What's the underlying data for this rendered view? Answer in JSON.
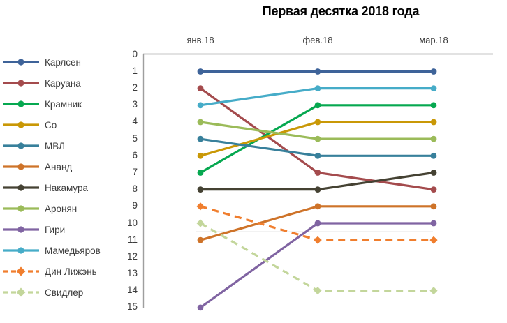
{
  "title": "Первая десятка 2018 года",
  "chart_data": {
    "type": "line",
    "title": "Первая десятка 2018 года",
    "categories": [
      "янв.18",
      "фев.18",
      "мар.18"
    ],
    "x_axis_position": "top",
    "legend_position": "left",
    "grid": false,
    "y_axis": {
      "ticks": [
        "0",
        "1",
        "2",
        "3",
        "4",
        "5",
        "6",
        "7",
        "8",
        "9",
        "10",
        "11",
        "12",
        "13",
        "14",
        "15"
      ],
      "min": 0,
      "max": 15,
      "increases_downward": true
    },
    "annotation_line_y": 10.5,
    "axis_colors": {
      "top_border": "#8c8c8c",
      "left_axis": "#9e9e9e",
      "annotation_line": "#dcdcdc"
    },
    "series": [
      {
        "name": "Карлсен",
        "color": "#3E6399",
        "line_style": "solid",
        "marker": "circle",
        "values": [
          1,
          1,
          1
        ]
      },
      {
        "name": "Каруана",
        "color": "#A44B4D",
        "line_style": "solid",
        "marker": "circle",
        "values": [
          2,
          7,
          8
        ]
      },
      {
        "name": "Крамник",
        "color": "#06A850",
        "line_style": "solid",
        "marker": "circle",
        "values": [
          7,
          3,
          3
        ]
      },
      {
        "name": "Со",
        "color": "#C99806",
        "line_style": "solid",
        "marker": "circle",
        "values": [
          6,
          4,
          4
        ]
      },
      {
        "name": "МВЛ",
        "color": "#38809B",
        "line_style": "solid",
        "marker": "circle",
        "values": [
          5,
          6,
          6
        ]
      },
      {
        "name": "Ананд",
        "color": "#CE7329",
        "line_style": "solid",
        "marker": "circle",
        "values": [
          11,
          9,
          9
        ]
      },
      {
        "name": "Накамура",
        "color": "#454233",
        "line_style": "solid",
        "marker": "circle",
        "values": [
          8,
          8,
          7
        ]
      },
      {
        "name": "Аронян",
        "color": "#9BBB59",
        "line_style": "solid",
        "marker": "circle",
        "values": [
          4,
          5,
          5
        ]
      },
      {
        "name": "Гири",
        "color": "#8064A2",
        "line_style": "solid",
        "marker": "circle",
        "values": [
          15,
          10,
          10
        ]
      },
      {
        "name": "Мамедьяров",
        "color": "#46ACC8",
        "line_style": "solid",
        "marker": "circle",
        "values": [
          3,
          2,
          2
        ]
      },
      {
        "name": "Дин Лижэнь",
        "color": "#F07E2E",
        "line_style": "dashed",
        "marker": "diamond",
        "values": [
          9,
          11,
          11
        ]
      },
      {
        "name": "Свидлер",
        "color": "#C3D69B",
        "line_style": "dashed",
        "marker": "diamond",
        "values": [
          10,
          14,
          14
        ]
      }
    ]
  }
}
